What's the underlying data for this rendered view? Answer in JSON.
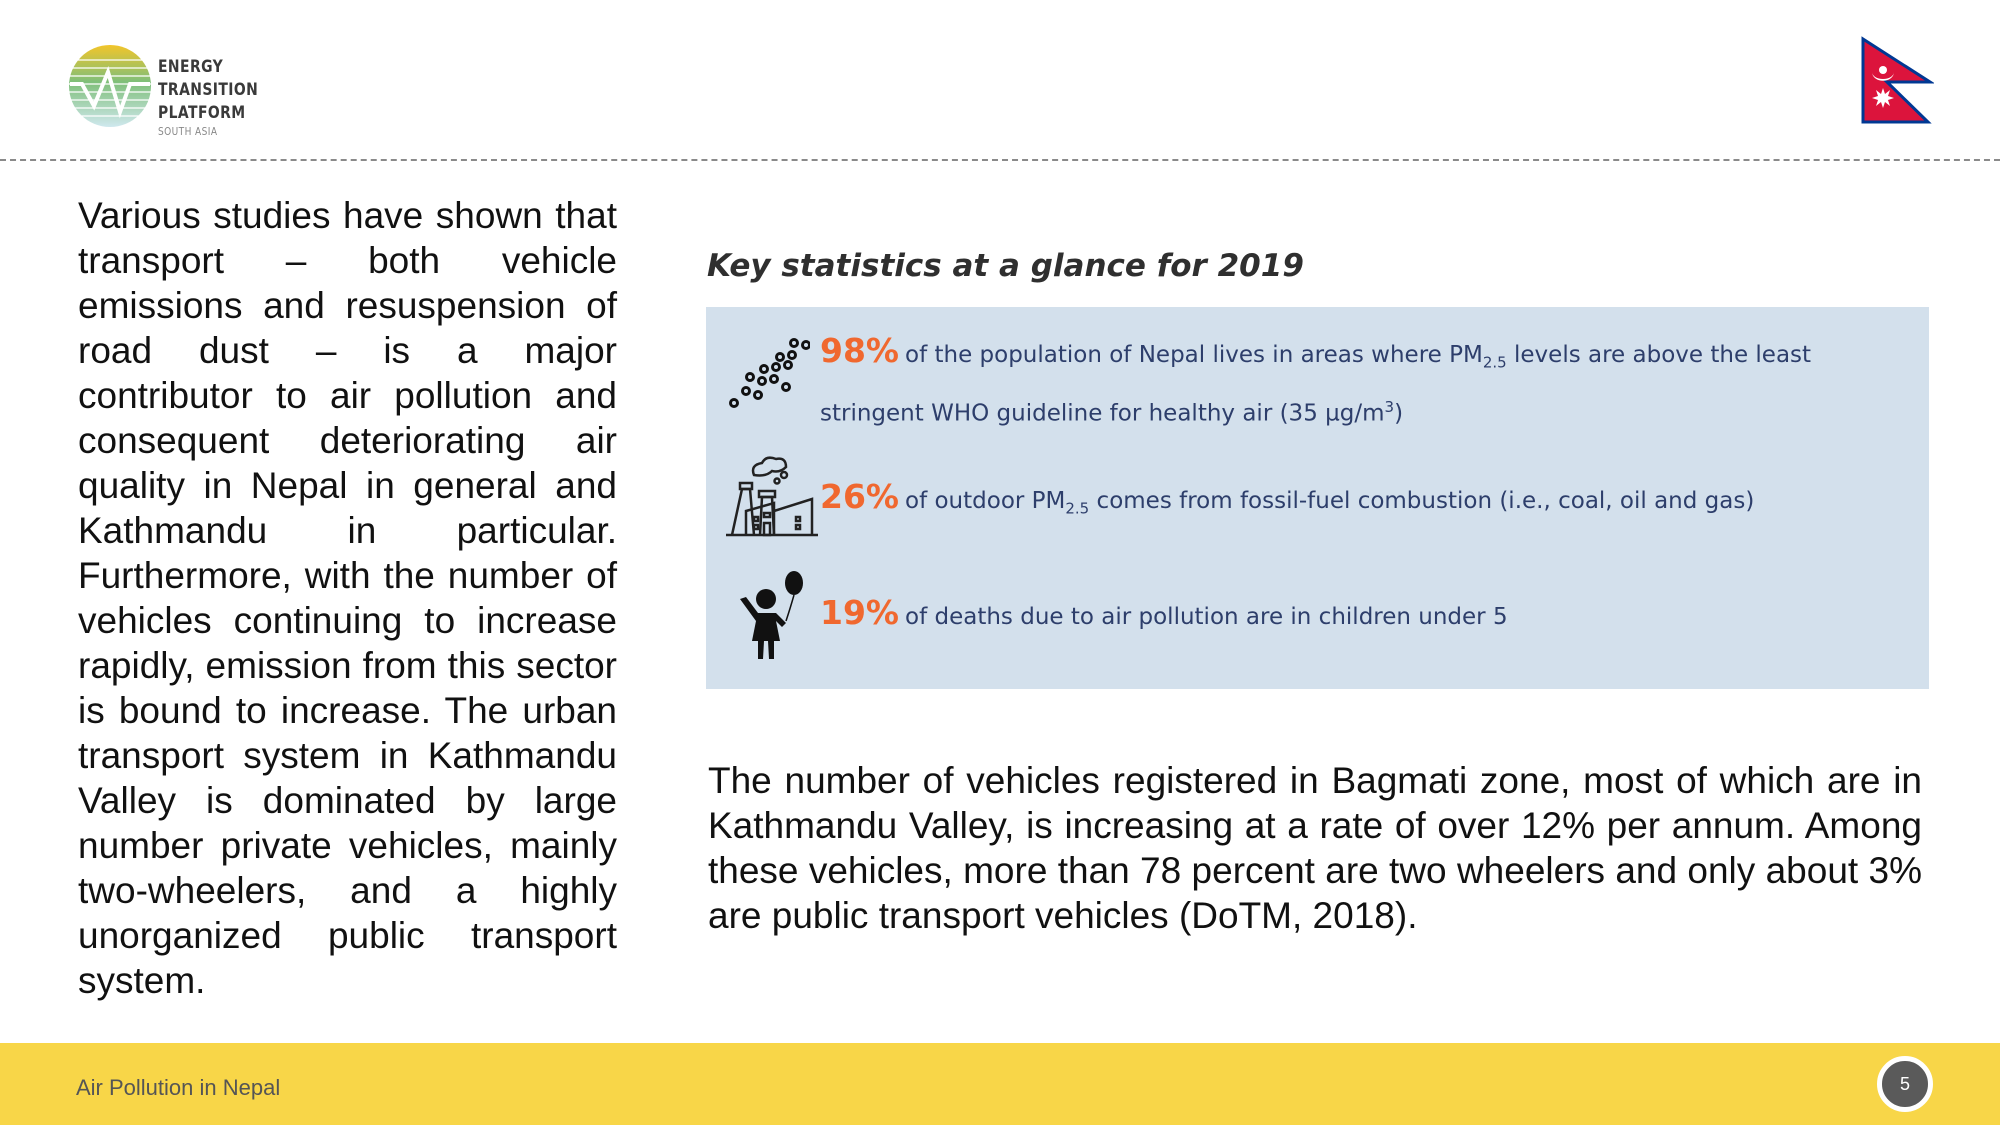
{
  "header": {
    "logo_title_1": "ENERGY TRANSITION",
    "logo_title_2": "PLATFORM",
    "logo_subtitle": "SOUTH ASIA"
  },
  "left_paragraph": "Various studies have shown that transport – both vehicle emissions and resuspension of road dust – is a major contributor to air pollution and consequent deteriorating air quality in Nepal in general and Kathmandu in particular. Furthermore, with the number of vehicles continuing to increase rapidly, emission from this sector is bound to increase. The urban transport system in Kathmandu Valley is dominated by large number private vehicles, mainly two-wheelers, and a highly unorganized public transport system.",
  "stats": {
    "heading": "Key statistics at a glance for 2019",
    "items": [
      {
        "pct": "98%",
        "text_a": "of the population of Nepal lives in areas where PM",
        "sub": "2.5",
        "text_b": " levels are above the least stringent WHO guideline for healthy air (35 µg/m",
        "sup": "3",
        "text_c": ")"
      },
      {
        "pct": "26%",
        "text_a": "of outdoor PM",
        "sub": "2.5",
        "text_b": " comes from fossil-fuel combustion (i.e., coal, oil and gas)"
      },
      {
        "pct": "19%",
        "text_a": "of deaths due to air pollution are in children under 5"
      }
    ]
  },
  "bottom_paragraph": "The number of vehicles registered in Bagmati zone, most of which are in Kathmandu Valley, is increasing at a rate of over 12% per annum. Among these vehicles, more than 78 percent are two wheelers and only about 3% are public transport vehicles (DoTM, 2018).",
  "footer": {
    "title": "Air Pollution in Nepal",
    "page": "5"
  },
  "colors": {
    "accent": "#f0682f",
    "box": "#d3e0ec",
    "footer": "#f8d648",
    "text": "#2d3e6b"
  }
}
